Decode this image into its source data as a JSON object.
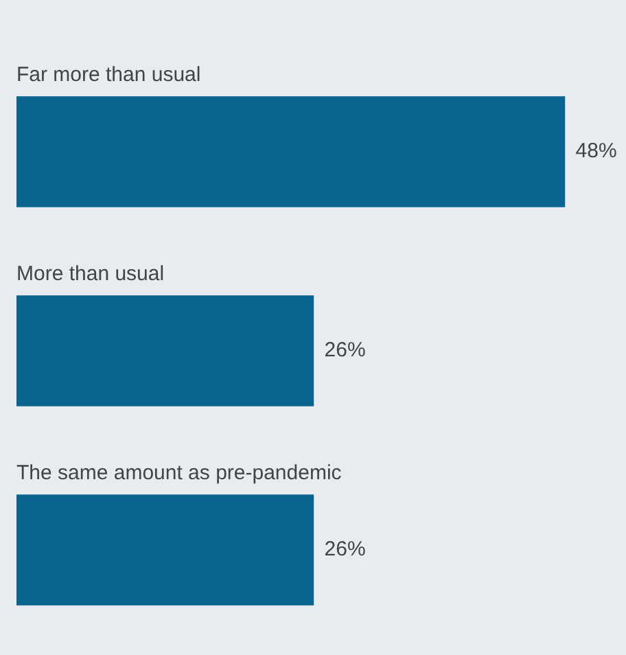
{
  "chart_data": {
    "type": "bar",
    "orientation": "horizontal",
    "categories": [
      "Far more than usual",
      "More than usual",
      "The same amount as pre-pandemic"
    ],
    "values": [
      48,
      26,
      26
    ],
    "color": "#0a6490",
    "value_labels": [
      "48%",
      "26%",
      "26%"
    ]
  }
}
